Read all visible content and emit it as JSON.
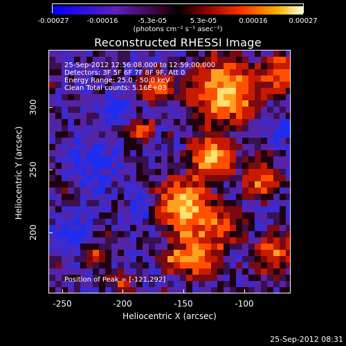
{
  "colorbar": {
    "ticks": [
      "-0.00027",
      "-0.00016",
      "-5.3e-05",
      "5.3e-05",
      "0.00016",
      "0.00027"
    ],
    "units": "(photons cm⁻² s⁻¹ asec⁻²)"
  },
  "title": "Reconstructed RHESSI Image",
  "annotations": {
    "time": "25-Sep-2012 12:56:08.000 to 12:59:00.000",
    "detectors": "Detectors: 3F 5F 6F 7F 8F 9F, Att 0",
    "energy": "Energy Range: 25.0 - 50.0 keV",
    "clean": "Clean     Total counts: 5.16E+03",
    "peak": "Position of Peak = [-121,292]"
  },
  "axes": {
    "x_ticks": [
      "-250",
      "-200",
      "-150",
      "-100"
    ],
    "y_ticks": [
      "300",
      "250",
      "200"
    ],
    "xlabel": "Heliocentric X (arcsec)",
    "ylabel": "Heliocentric Y (arcsec)"
  },
  "footer_date": "25-Sep-2012 08:31",
  "colors": {
    "low": "#1a1aff",
    "mid_low": "#5a1aa0",
    "mid": "#200010",
    "high": "#d01000",
    "peak": "#ffff80"
  }
}
